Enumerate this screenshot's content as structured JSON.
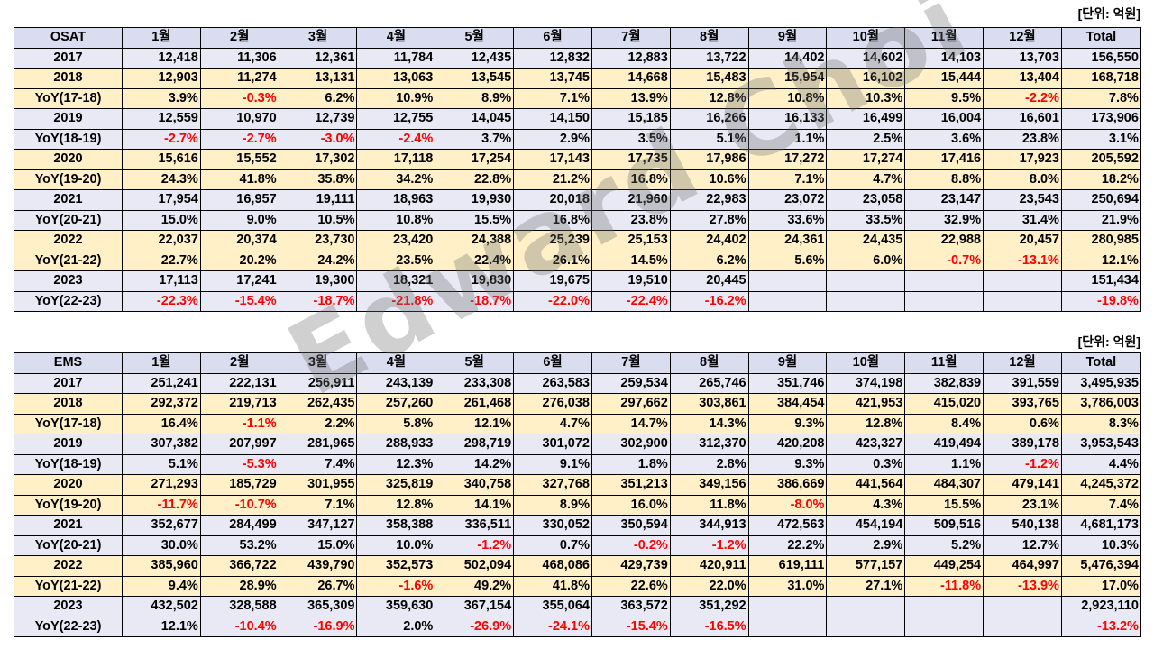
{
  "unit_label": "[단위: 억원]",
  "watermark": "Edward Choi",
  "tables": [
    {
      "name": "osat",
      "header": [
        "OSAT",
        "1월",
        "2월",
        "3월",
        "4월",
        "5월",
        "6월",
        "7월",
        "8월",
        "9월",
        "10월",
        "11월",
        "12월",
        "Total"
      ],
      "rows": [
        {
          "color": "lav",
          "cells": [
            "2017",
            "12,418",
            "11,306",
            "12,361",
            "11,784",
            "12,435",
            "12,832",
            "12,883",
            "13,722",
            "14,402",
            "14,602",
            "14,103",
            "13,703",
            "156,550"
          ]
        },
        {
          "color": "cream",
          "cells": [
            "2018",
            "12,903",
            "11,274",
            "13,131",
            "13,063",
            "13,545",
            "13,745",
            "14,668",
            "15,483",
            "15,954",
            "16,102",
            "15,444",
            "13,404",
            "168,718"
          ]
        },
        {
          "color": "cream",
          "cells": [
            "YoY(17-18)",
            "3.9%",
            "-0.3%",
            "6.2%",
            "10.9%",
            "8.9%",
            "7.1%",
            "13.9%",
            "12.8%",
            "10.8%",
            "10.3%",
            "9.5%",
            "-2.2%",
            "7.8%"
          ]
        },
        {
          "color": "lav",
          "cells": [
            "2019",
            "12,559",
            "10,970",
            "12,739",
            "12,755",
            "14,045",
            "14,150",
            "15,185",
            "16,266",
            "16,133",
            "16,499",
            "16,004",
            "16,601",
            "173,906"
          ]
        },
        {
          "color": "lav",
          "cells": [
            "YoY(18-19)",
            "-2.7%",
            "-2.7%",
            "-3.0%",
            "-2.4%",
            "3.7%",
            "2.9%",
            "3.5%",
            "5.1%",
            "1.1%",
            "2.5%",
            "3.6%",
            "23.8%",
            "3.1%"
          ]
        },
        {
          "color": "cream",
          "cells": [
            "2020",
            "15,616",
            "15,552",
            "17,302",
            "17,118",
            "17,254",
            "17,143",
            "17,735",
            "17,986",
            "17,272",
            "17,274",
            "17,416",
            "17,923",
            "205,592"
          ]
        },
        {
          "color": "cream",
          "cells": [
            "YoY(19-20)",
            "24.3%",
            "41.8%",
            "35.8%",
            "34.2%",
            "22.8%",
            "21.2%",
            "16.8%",
            "10.6%",
            "7.1%",
            "4.7%",
            "8.8%",
            "8.0%",
            "18.2%"
          ]
        },
        {
          "color": "lav",
          "cells": [
            "2021",
            "17,954",
            "16,957",
            "19,111",
            "18,963",
            "19,930",
            "20,018",
            "21,960",
            "22,983",
            "23,072",
            "23,058",
            "23,147",
            "23,543",
            "250,694"
          ]
        },
        {
          "color": "lav",
          "cells": [
            "YoY(20-21)",
            "15.0%",
            "9.0%",
            "10.5%",
            "10.8%",
            "15.5%",
            "16.8%",
            "23.8%",
            "27.8%",
            "33.6%",
            "33.5%",
            "32.9%",
            "31.4%",
            "21.9%"
          ]
        },
        {
          "color": "cream",
          "cells": [
            "2022",
            "22,037",
            "20,374",
            "23,730",
            "23,420",
            "24,388",
            "25,239",
            "25,153",
            "24,402",
            "24,361",
            "24,435",
            "22,988",
            "20,457",
            "280,985"
          ]
        },
        {
          "color": "cream",
          "cells": [
            "YoY(21-22)",
            "22.7%",
            "20.2%",
            "24.2%",
            "23.5%",
            "22.4%",
            "26.1%",
            "14.5%",
            "6.2%",
            "5.6%",
            "6.0%",
            "-0.7%",
            "-13.1%",
            "12.1%"
          ]
        },
        {
          "color": "lav",
          "cells": [
            "2023",
            "17,113",
            "17,241",
            "19,300",
            "18,321",
            "19,830",
            "19,675",
            "19,510",
            "20,445",
            "",
            "",
            "",
            "",
            "151,434"
          ]
        },
        {
          "color": "lav",
          "cells": [
            "YoY(22-23)",
            "-22.3%",
            "-15.4%",
            "-18.7%",
            "-21.8%",
            "-18.7%",
            "-22.0%",
            "-22.4%",
            "-16.2%",
            "",
            "",
            "",
            "",
            "-19.8%"
          ]
        }
      ]
    },
    {
      "name": "ems",
      "header": [
        "EMS",
        "1월",
        "2월",
        "3월",
        "4월",
        "5월",
        "6월",
        "7월",
        "8월",
        "9월",
        "10월",
        "11월",
        "12월",
        "Total"
      ],
      "rows": [
        {
          "color": "lav",
          "cells": [
            "2017",
            "251,241",
            "222,131",
            "256,911",
            "243,139",
            "233,308",
            "263,583",
            "259,534",
            "265,746",
            "351,746",
            "374,198",
            "382,839",
            "391,559",
            "3,495,935"
          ]
        },
        {
          "color": "cream",
          "cells": [
            "2018",
            "292,372",
            "219,713",
            "262,435",
            "257,260",
            "261,468",
            "276,038",
            "297,662",
            "303,861",
            "384,454",
            "421,953",
            "415,020",
            "393,765",
            "3,786,003"
          ]
        },
        {
          "color": "cream",
          "cells": [
            "YoY(17-18)",
            "16.4%",
            "-1.1%",
            "2.2%",
            "5.8%",
            "12.1%",
            "4.7%",
            "14.7%",
            "14.3%",
            "9.3%",
            "12.8%",
            "8.4%",
            "0.6%",
            "8.3%"
          ]
        },
        {
          "color": "lav",
          "cells": [
            "2019",
            "307,382",
            "207,997",
            "281,965",
            "288,933",
            "298,719",
            "301,072",
            "302,900",
            "312,370",
            "420,208",
            "423,327",
            "419,494",
            "389,178",
            "3,953,543"
          ]
        },
        {
          "color": "lav",
          "cells": [
            "YoY(18-19)",
            "5.1%",
            "-5.3%",
            "7.4%",
            "12.3%",
            "14.2%",
            "9.1%",
            "1.8%",
            "2.8%",
            "9.3%",
            "0.3%",
            "1.1%",
            "-1.2%",
            "4.4%"
          ]
        },
        {
          "color": "cream",
          "cells": [
            "2020",
            "271,293",
            "185,729",
            "301,955",
            "325,819",
            "340,758",
            "327,768",
            "351,213",
            "349,156",
            "386,669",
            "441,564",
            "484,307",
            "479,141",
            "4,245,372"
          ]
        },
        {
          "color": "cream",
          "cells": [
            "YoY(19-20)",
            "-11.7%",
            "-10.7%",
            "7.1%",
            "12.8%",
            "14.1%",
            "8.9%",
            "16.0%",
            "11.8%",
            "-8.0%",
            "4.3%",
            "15.5%",
            "23.1%",
            "7.4%"
          ]
        },
        {
          "color": "lav",
          "cells": [
            "2021",
            "352,677",
            "284,499",
            "347,127",
            "358,388",
            "336,511",
            "330,052",
            "350,594",
            "344,913",
            "472,563",
            "454,194",
            "509,516",
            "540,138",
            "4,681,173"
          ]
        },
        {
          "color": "lav",
          "cells": [
            "YoY(20-21)",
            "30.0%",
            "53.2%",
            "15.0%",
            "10.0%",
            "-1.2%",
            "0.7%",
            "-0.2%",
            "-1.2%",
            "22.2%",
            "2.9%",
            "5.2%",
            "12.7%",
            "10.3%"
          ]
        },
        {
          "color": "cream",
          "cells": [
            "2022",
            "385,960",
            "366,722",
            "439,790",
            "352,573",
            "502,094",
            "468,086",
            "429,739",
            "420,911",
            "619,111",
            "577,157",
            "449,254",
            "464,997",
            "5,476,394"
          ]
        },
        {
          "color": "cream",
          "cells": [
            "YoY(21-22)",
            "9.4%",
            "28.9%",
            "26.7%",
            "-1.6%",
            "49.2%",
            "41.8%",
            "22.6%",
            "22.0%",
            "31.0%",
            "27.1%",
            "-11.8%",
            "-13.9%",
            "17.0%"
          ]
        },
        {
          "color": "lav",
          "cells": [
            "2023",
            "432,502",
            "328,588",
            "365,309",
            "359,630",
            "367,154",
            "355,064",
            "363,572",
            "351,292",
            "",
            "",
            "",
            "",
            "2,923,110"
          ]
        },
        {
          "color": "lav",
          "cells": [
            "YoY(22-23)",
            "12.1%",
            "-10.4%",
            "-16.9%",
            "2.0%",
            "-26.9%",
            "-24.1%",
            "-15.4%",
            "-16.5%",
            "",
            "",
            "",
            "",
            "-13.2%"
          ]
        }
      ]
    }
  ]
}
